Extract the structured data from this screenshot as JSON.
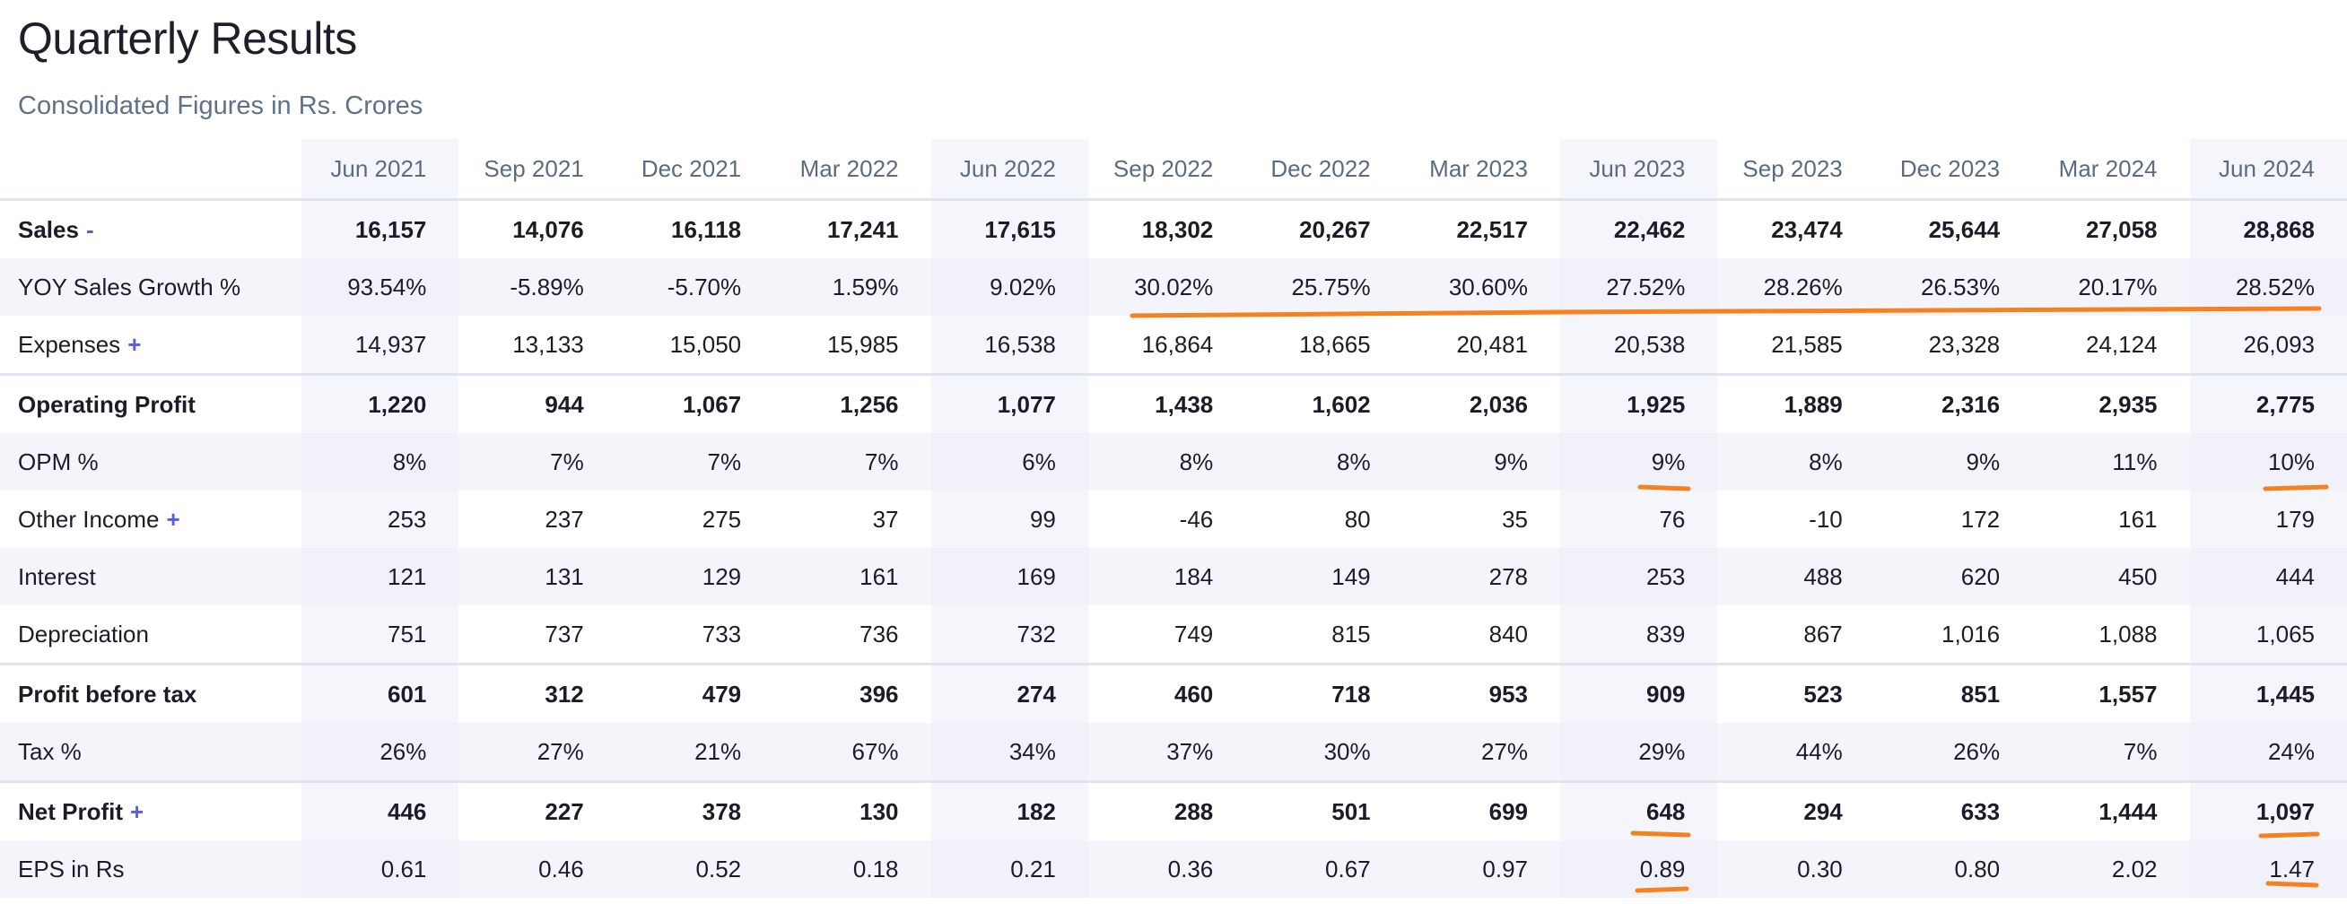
{
  "title": "Quarterly Results",
  "subtitle": "Consolidated Figures in Rs. Crores",
  "periods": [
    "Jun 2021",
    "Sep 2021",
    "Dec 2021",
    "Mar 2022",
    "Jun 2022",
    "Sep 2022",
    "Dec 2022",
    "Mar 2023",
    "Jun 2023",
    "Sep 2023",
    "Dec 2023",
    "Mar 2024",
    "Jun 2024"
  ],
  "rows": [
    {
      "label": "Sales",
      "toggle": "-",
      "values": [
        "16,157",
        "14,076",
        "16,118",
        "17,241",
        "17,615",
        "18,302",
        "20,267",
        "22,517",
        "22,462",
        "23,474",
        "25,644",
        "27,058",
        "28,868"
      ]
    },
    {
      "label": "YOY Sales Growth %",
      "toggle": "",
      "values": [
        "93.54%",
        "-5.89%",
        "-5.70%",
        "1.59%",
        "9.02%",
        "30.02%",
        "25.75%",
        "30.60%",
        "27.52%",
        "28.26%",
        "26.53%",
        "20.17%",
        "28.52%"
      ]
    },
    {
      "label": "Expenses",
      "toggle": "+",
      "values": [
        "14,937",
        "13,133",
        "15,050",
        "15,985",
        "16,538",
        "16,864",
        "18,665",
        "20,481",
        "20,538",
        "21,585",
        "23,328",
        "24,124",
        "26,093"
      ]
    },
    {
      "label": "Operating Profit",
      "toggle": "",
      "values": [
        "1,220",
        "944",
        "1,067",
        "1,256",
        "1,077",
        "1,438",
        "1,602",
        "2,036",
        "1,925",
        "1,889",
        "2,316",
        "2,935",
        "2,775"
      ]
    },
    {
      "label": "OPM %",
      "toggle": "",
      "values": [
        "8%",
        "7%",
        "7%",
        "7%",
        "6%",
        "8%",
        "8%",
        "9%",
        "9%",
        "8%",
        "9%",
        "11%",
        "10%"
      ]
    },
    {
      "label": "Other Income",
      "toggle": "+",
      "values": [
        "253",
        "237",
        "275",
        "37",
        "99",
        "-46",
        "80",
        "35",
        "76",
        "-10",
        "172",
        "161",
        "179"
      ]
    },
    {
      "label": "Interest",
      "toggle": "",
      "values": [
        "121",
        "131",
        "129",
        "161",
        "169",
        "184",
        "149",
        "278",
        "253",
        "488",
        "620",
        "450",
        "444"
      ]
    },
    {
      "label": "Depreciation",
      "toggle": "",
      "values": [
        "751",
        "737",
        "733",
        "736",
        "732",
        "749",
        "815",
        "840",
        "839",
        "867",
        "1,016",
        "1,088",
        "1,065"
      ]
    },
    {
      "label": "Profit before tax",
      "toggle": "",
      "values": [
        "601",
        "312",
        "479",
        "396",
        "274",
        "460",
        "718",
        "953",
        "909",
        "523",
        "851",
        "1,557",
        "1,445"
      ]
    },
    {
      "label": "Tax %",
      "toggle": "",
      "values": [
        "26%",
        "27%",
        "21%",
        "67%",
        "34%",
        "37%",
        "30%",
        "27%",
        "29%",
        "44%",
        "26%",
        "7%",
        "24%"
      ]
    },
    {
      "label": "Net Profit",
      "toggle": "+",
      "values": [
        "446",
        "227",
        "378",
        "130",
        "182",
        "288",
        "501",
        "699",
        "648",
        "294",
        "633",
        "1,444",
        "1,097"
      ]
    },
    {
      "label": "EPS in Rs",
      "toggle": "",
      "values": [
        "0.61",
        "0.46",
        "0.52",
        "0.18",
        "0.21",
        "0.36",
        "0.67",
        "0.97",
        "0.89",
        "0.30",
        "0.80",
        "2.02",
        "1.47"
      ]
    }
  ],
  "colors": {
    "annotation": "#f5821f",
    "toggle": "#5b5fd6",
    "subtitle": "#5f7189",
    "highlight_column": "#f5f6fc"
  }
}
